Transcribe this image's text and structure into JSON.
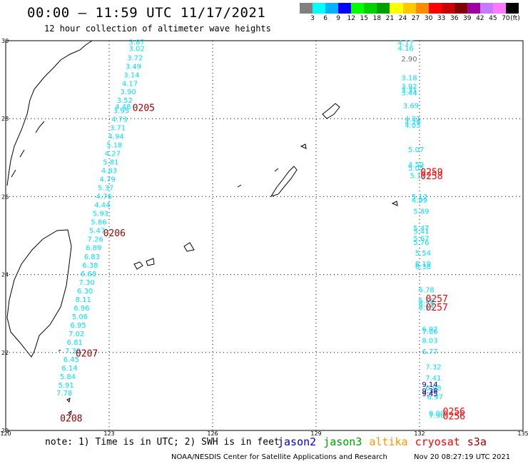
{
  "header": {
    "title": "00:00 – 11:59 UTC 11/17/2021",
    "subtitle": "12 hour collection of altimeter wave heights"
  },
  "legend": {
    "unit": "(ft)",
    "swatches": [
      "#808080",
      "#00ffff",
      "#00b4ff",
      "#0000ff",
      "#00ff00",
      "#00d200",
      "#00a000",
      "#ffff00",
      "#ffc800",
      "#ff8c00",
      "#ff0000",
      "#c80000",
      "#800000",
      "#a000a0",
      "#c878ff",
      "#ff78ff",
      "#000000"
    ],
    "labels": [
      "3",
      "6",
      "9",
      "12",
      "15",
      "18",
      "21",
      "24",
      "27",
      "30",
      "33",
      "36",
      "39",
      "42",
      "45",
      "70"
    ]
  },
  "map": {
    "lon_min": 120,
    "lon_max": 135,
    "lat_min": 20,
    "lat_max": 30,
    "lon_ticks": [
      "120",
      "123",
      "126",
      "129",
      "132",
      "135"
    ],
    "lat_ticks": [
      "30",
      "28",
      "26",
      "24",
      "22",
      "20"
    ],
    "tracks": [
      {
        "color": "#00e0ff",
        "points": [
          {
            "lon": 123.8,
            "lat": 29.9,
            "v": "3.87"
          },
          {
            "lon": 123.8,
            "lat": 29.73,
            "v": "3.02"
          },
          {
            "lon": 123.75,
            "lat": 29.5,
            "v": "3.72"
          },
          {
            "lon": 123.7,
            "lat": 29.28,
            "v": "3.49"
          },
          {
            "lon": 123.65,
            "lat": 29.06,
            "v": "3.14"
          },
          {
            "lon": 123.6,
            "lat": 28.84,
            "v": "4.17"
          },
          {
            "lon": 123.55,
            "lat": 28.63,
            "v": "3.90"
          },
          {
            "lon": 123.45,
            "lat": 28.41,
            "v": "3.52"
          },
          {
            "lon": 123.4,
            "lat": 28.24,
            "v": "4.48"
          },
          {
            "lon": 123.35,
            "lat": 28.14,
            "v": "3.95"
          },
          {
            "lon": 123.3,
            "lat": 27.92,
            "v": "4.73"
          },
          {
            "lon": 123.25,
            "lat": 27.7,
            "v": "3.71"
          },
          {
            "lon": 123.2,
            "lat": 27.48,
            "v": "4.94"
          },
          {
            "lon": 123.15,
            "lat": 27.26,
            "v": "5.18"
          },
          {
            "lon": 123.1,
            "lat": 27.04,
            "v": "4.27"
          },
          {
            "lon": 123.05,
            "lat": 26.82,
            "v": "5.81"
          },
          {
            "lon": 123.0,
            "lat": 26.6,
            "v": "4.83"
          },
          {
            "lon": 122.95,
            "lat": 26.38,
            "v": "4.79"
          },
          {
            "lon": 122.9,
            "lat": 26.16,
            "v": "5.37"
          },
          {
            "lon": 122.85,
            "lat": 25.94,
            "v": "4.76"
          },
          {
            "lon": 122.8,
            "lat": 25.72,
            "v": "4.44"
          },
          {
            "lon": 122.75,
            "lat": 25.5,
            "v": "5.93"
          },
          {
            "lon": 122.7,
            "lat": 25.28,
            "v": "5.86"
          },
          {
            "lon": 122.65,
            "lat": 25.06,
            "v": "5.47"
          },
          {
            "lon": 122.6,
            "lat": 24.84,
            "v": "7.26"
          },
          {
            "lon": 122.55,
            "lat": 24.62,
            "v": "6.89"
          },
          {
            "lon": 122.5,
            "lat": 24.4,
            "v": "6.83"
          },
          {
            "lon": 122.45,
            "lat": 24.18,
            "v": "6.38"
          },
          {
            "lon": 122.4,
            "lat": 23.96,
            "v": "6.68"
          },
          {
            "lon": 122.35,
            "lat": 23.74,
            "v": "7.30"
          },
          {
            "lon": 122.3,
            "lat": 23.52,
            "v": "6.30"
          },
          {
            "lon": 122.25,
            "lat": 23.3,
            "v": "8.11"
          },
          {
            "lon": 122.2,
            "lat": 23.08,
            "v": "6.96"
          },
          {
            "lon": 122.15,
            "lat": 22.86,
            "v": "5.06"
          },
          {
            "lon": 122.1,
            "lat": 22.64,
            "v": "6.95"
          },
          {
            "lon": 122.05,
            "lat": 22.42,
            "v": "7.02"
          },
          {
            "lon": 122.0,
            "lat": 22.2,
            "v": "6.81"
          },
          {
            "lon": 121.95,
            "lat": 21.98,
            "v": "7.39"
          },
          {
            "lon": 121.9,
            "lat": 21.76,
            "v": "6.45"
          },
          {
            "lon": 121.85,
            "lat": 21.54,
            "v": "6.14"
          },
          {
            "lon": 121.8,
            "lat": 21.32,
            "v": "5.84"
          },
          {
            "lon": 121.75,
            "lat": 21.1,
            "v": "5.91"
          },
          {
            "lon": 121.7,
            "lat": 20.9,
            "v": "7.78"
          }
        ]
      },
      {
        "color": "#00e0ff",
        "points": [
          {
            "lon": 131.6,
            "lat": 29.88,
            "v": "4.17"
          },
          {
            "lon": 131.6,
            "lat": 29.74,
            "v": "4.16"
          },
          {
            "lon": 131.7,
            "lat": 28.98,
            "v": "3.18"
          },
          {
            "lon": 131.7,
            "lat": 28.76,
            "v": "3.92"
          },
          {
            "lon": 131.7,
            "lat": 28.67,
            "v": "3.31"
          },
          {
            "lon": 131.7,
            "lat": 28.6,
            "v": "3.44"
          },
          {
            "lon": 131.75,
            "lat": 28.27,
            "v": "3.69"
          },
          {
            "lon": 131.8,
            "lat": 27.93,
            "v": "4.31"
          },
          {
            "lon": 131.8,
            "lat": 27.85,
            "v": "4.29"
          },
          {
            "lon": 131.8,
            "lat": 27.77,
            "v": "4.03"
          },
          {
            "lon": 131.9,
            "lat": 27.14,
            "v": "5.07"
          },
          {
            "lon": 131.9,
            "lat": 26.76,
            "v": "4.59"
          },
          {
            "lon": 131.9,
            "lat": 26.67,
            "v": "5.05"
          },
          {
            "lon": 131.95,
            "lat": 26.47,
            "v": "5.11"
          },
          {
            "lon": 132.0,
            "lat": 25.93,
            "v": "5.12"
          },
          {
            "lon": 132.0,
            "lat": 25.84,
            "v": "4.99"
          },
          {
            "lon": 132.05,
            "lat": 25.56,
            "v": "5.89"
          },
          {
            "lon": 132.05,
            "lat": 25.13,
            "v": "5.47"
          },
          {
            "lon": 132.05,
            "lat": 25.05,
            "v": "5.41"
          },
          {
            "lon": 132.05,
            "lat": 24.86,
            "v": "5.67"
          },
          {
            "lon": 132.05,
            "lat": 24.76,
            "v": "5.76"
          },
          {
            "lon": 132.1,
            "lat": 24.49,
            "v": "5.54"
          },
          {
            "lon": 132.1,
            "lat": 24.21,
            "v": "6.19"
          },
          {
            "lon": 132.1,
            "lat": 24.14,
            "v": "6.38"
          },
          {
            "lon": 132.2,
            "lat": 23.54,
            "v": "6.78"
          },
          {
            "lon": 132.2,
            "lat": 23.27,
            "v": "6.56"
          },
          {
            "lon": 132.2,
            "lat": 23.18,
            "v": "6.75"
          },
          {
            "lon": 132.2,
            "lat": 23.09,
            "v": "6.15"
          },
          {
            "lon": 132.3,
            "lat": 22.54,
            "v": "6.92"
          },
          {
            "lon": 132.3,
            "lat": 22.47,
            "v": "7.06"
          },
          {
            "lon": 132.3,
            "lat": 22.24,
            "v": "8.03"
          },
          {
            "lon": 132.3,
            "lat": 21.96,
            "v": "6.77"
          },
          {
            "lon": 132.4,
            "lat": 21.57,
            "v": "7.32"
          },
          {
            "lon": 132.4,
            "lat": 21.28,
            "v": "7.41"
          },
          {
            "lon": 132.4,
            "lat": 21.03,
            "v": "6.98"
          },
          {
            "lon": 132.45,
            "lat": 20.8,
            "v": "6.97"
          },
          {
            "lon": 132.5,
            "lat": 20.38,
            "v": "8.00"
          },
          {
            "lon": 132.5,
            "lat": 20.32,
            "v": "7.90"
          }
        ]
      },
      {
        "color": "#0000b0",
        "points": [
          {
            "lon": 132.3,
            "lat": 21.12,
            "v": "9.14"
          },
          {
            "lon": 132.3,
            "lat": 20.95,
            "v": "9.38"
          },
          {
            "lon": 132.3,
            "lat": 20.88,
            "v": "9.45"
          }
        ]
      },
      {
        "color": "#707070",
        "points": [
          {
            "lon": 131.7,
            "lat": 29.47,
            "v": "2.90"
          }
        ]
      }
    ],
    "time_labels": [
      {
        "lon": 124.0,
        "lat": 28.2,
        "t": "0205",
        "color": "#a00000"
      },
      {
        "lon": 123.15,
        "lat": 24.98,
        "t": "0206",
        "color": "#a00000"
      },
      {
        "lon": 122.35,
        "lat": 21.9,
        "t": "0207",
        "color": "#a00000"
      },
      {
        "lon": 121.9,
        "lat": 20.23,
        "t": "0208",
        "color": "#a00000"
      },
      {
        "lon": 132.35,
        "lat": 26.55,
        "t": "0259",
        "color": "#ff0000"
      },
      {
        "lon": 132.35,
        "lat": 26.45,
        "t": "0258",
        "color": "#ff0000"
      },
      {
        "lon": 132.5,
        "lat": 23.3,
        "t": "0257",
        "color": "#ff0000"
      },
      {
        "lon": 132.5,
        "lat": 23.08,
        "t": "0257",
        "color": "#ff0000"
      },
      {
        "lon": 133.0,
        "lat": 20.4,
        "t": "0256",
        "color": "#ff0000"
      },
      {
        "lon": 133.0,
        "lat": 20.28,
        "t": "0256",
        "color": "#ff0000"
      }
    ]
  },
  "footer": {
    "note": "note: 1) Time is in UTC; 2) SWH is in feet",
    "satellites": [
      {
        "name": "jason2",
        "color": "#0000c8"
      },
      {
        "name": "jason3",
        "color": "#00a000"
      },
      {
        "name": "altika",
        "color": "#ff9600"
      },
      {
        "name": "cryosat",
        "color": "#ff0000"
      },
      {
        "name": "s3a",
        "color": "#960000"
      }
    ],
    "credit": "NOAA/NESDIS Center for Satellite Applications and Research",
    "timestamp": "Nov 20 08:27:19 UTC 2021"
  }
}
